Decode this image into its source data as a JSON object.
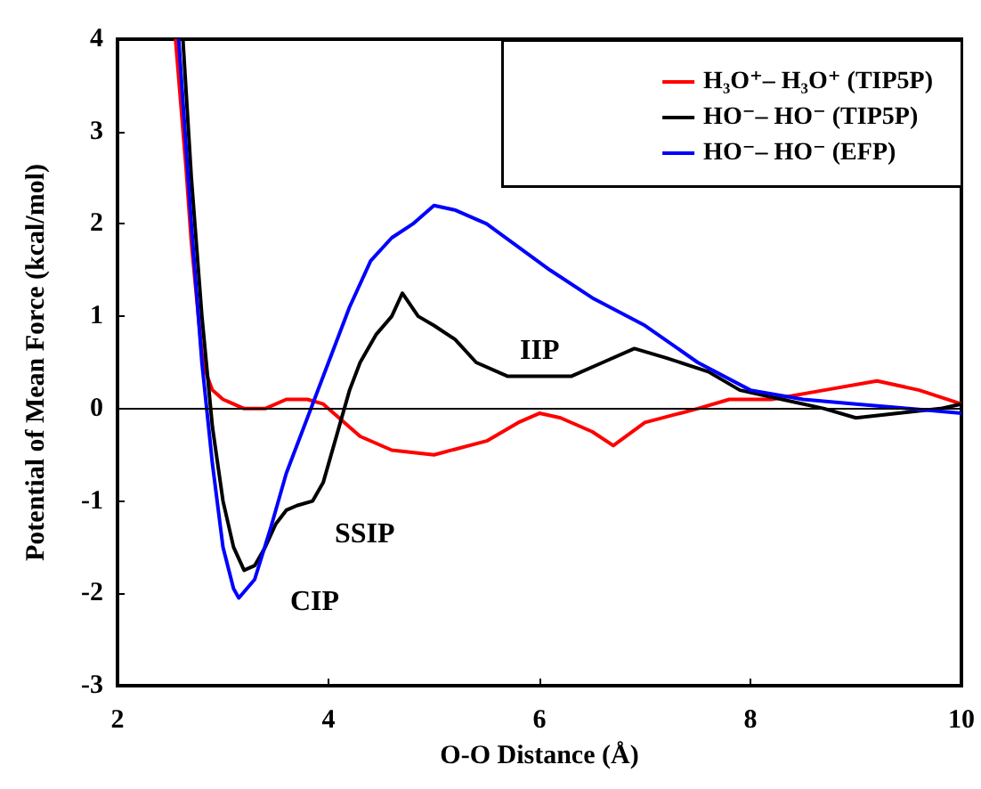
{
  "chart_data": {
    "type": "line",
    "xlabel": "O-O Distance (Å)",
    "ylabel": "Potential of Mean Force (kcal/mol)",
    "xlim": [
      2,
      10
    ],
    "xticks": [
      2,
      4,
      6,
      8,
      10
    ],
    "ylim": [
      -3,
      4
    ],
    "yticks": [
      -3,
      -2,
      -1,
      0,
      1,
      2,
      3,
      4
    ],
    "grid": false,
    "legend": "top right",
    "marker": "none",
    "line_style": "solid",
    "ref_lines": [
      {
        "axis": "y",
        "value": 0,
        "color": "#000000"
      }
    ],
    "annotations": [
      "CIP",
      "SSIP",
      "IIP"
    ],
    "series": [
      {
        "name": "H₃O⁺– H₃O⁺ (TIP5P)",
        "color": "#ff0000",
        "x": [
          2.55,
          2.6,
          2.65,
          2.7,
          2.75,
          2.8,
          2.85,
          2.9,
          3.0,
          3.2,
          3.4,
          3.6,
          3.8,
          3.95,
          4.1,
          4.3,
          4.6,
          5.0,
          5.5,
          5.8,
          6.0,
          6.2,
          6.5,
          6.7,
          7.0,
          7.5,
          7.8,
          8.2,
          8.7,
          9.2,
          9.6,
          10
        ],
        "values": [
          4,
          3.3,
          2.6,
          1.8,
          1.2,
          0.6,
          0.35,
          0.2,
          0.1,
          0.0,
          0.0,
          0.1,
          0.1,
          0.05,
          -0.1,
          -0.3,
          -0.45,
          -0.5,
          -0.35,
          -0.15,
          -0.05,
          -0.1,
          -0.25,
          -0.4,
          -0.15,
          0.0,
          0.1,
          0.1,
          0.2,
          0.3,
          0.2,
          0.05
        ]
      },
      {
        "name": "HO⁻– HO⁻ (TIP5P)",
        "color": "#000000",
        "x": [
          2.62,
          2.7,
          2.8,
          2.9,
          3.0,
          3.1,
          3.2,
          3.3,
          3.4,
          3.5,
          3.6,
          3.7,
          3.85,
          3.95,
          4.1,
          4.2,
          4.3,
          4.45,
          4.6,
          4.7,
          4.85,
          5.0,
          5.2,
          5.4,
          5.7,
          6.0,
          6.3,
          6.6,
          6.9,
          7.2,
          7.6,
          7.9,
          8.3,
          8.7,
          9.0,
          9.4,
          9.8,
          10
        ],
        "values": [
          4,
          2.5,
          1.0,
          -0.2,
          -1.0,
          -1.5,
          -1.75,
          -1.7,
          -1.5,
          -1.25,
          -1.1,
          -1.05,
          -1.0,
          -0.8,
          -0.2,
          0.2,
          0.5,
          0.8,
          1.0,
          1.25,
          1.0,
          0.9,
          0.75,
          0.5,
          0.35,
          0.35,
          0.35,
          0.5,
          0.65,
          0.55,
          0.4,
          0.2,
          0.1,
          0.0,
          -0.1,
          -0.05,
          0.0,
          0.05
        ]
      },
      {
        "name": "HO⁻– HO⁻ (EFP)",
        "color": "#0000ff",
        "x": [
          2.58,
          2.7,
          2.8,
          2.9,
          3.0,
          3.1,
          3.15,
          3.3,
          3.45,
          3.6,
          3.8,
          4.0,
          4.2,
          4.4,
          4.6,
          4.8,
          5.0,
          5.2,
          5.5,
          5.8,
          6.1,
          6.5,
          7.0,
          7.5,
          8.0,
          8.5,
          9.0,
          9.5,
          10
        ],
        "values": [
          4,
          2.0,
          0.5,
          -0.6,
          -1.5,
          -1.95,
          -2.05,
          -1.85,
          -1.3,
          -0.7,
          -0.1,
          0.5,
          1.1,
          1.6,
          1.85,
          2.0,
          2.2,
          2.15,
          2.0,
          1.75,
          1.5,
          1.2,
          0.9,
          0.5,
          0.2,
          0.1,
          0.05,
          0.0,
          -0.05
        ]
      }
    ]
  }
}
